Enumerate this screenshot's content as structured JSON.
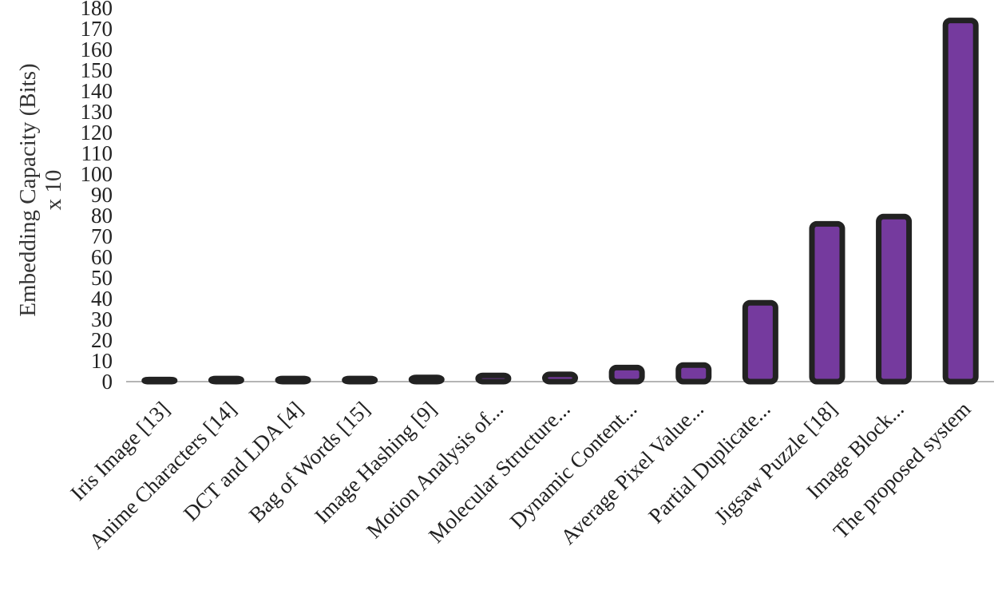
{
  "chart_data": {
    "type": "bar",
    "ylabel_lines": [
      "Embedding Capacity (Bits)",
      "x 10"
    ],
    "ylim": [
      0,
      180
    ],
    "ytick_step": 10,
    "grid": false,
    "categories": [
      "Iris Image [13]",
      "Anime Characters [14]",
      "DCT and LDA [4]",
      "Bag of Words [15]",
      "Image Hashing [9]",
      "Motion Analysis of...",
      "Molecular Structure...",
      "Dynamic Content...",
      "Average Pixel Value...",
      "Partial Duplicate...",
      "Jigsaw Puzzle [18]",
      "Image Block...",
      "The proposed system"
    ],
    "values": [
      1,
      1.5,
      1.5,
      1.5,
      2,
      3,
      3.5,
      6.8,
      8,
      38,
      76,
      79.5,
      174
    ],
    "colors": {
      "fill": "#753a9e",
      "border": "#222222",
      "baseline": "#b5b5b5"
    }
  }
}
